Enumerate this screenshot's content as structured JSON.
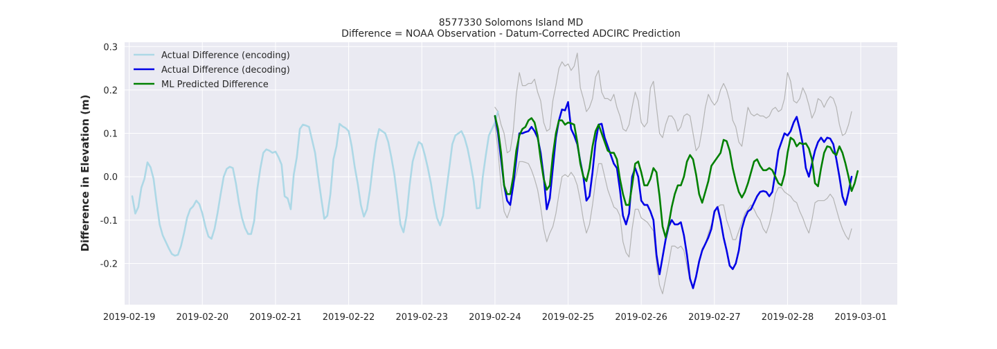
{
  "chart_data": {
    "type": "line",
    "title": "8577330 Solomons Island MD",
    "subtitle": "Difference = NOAA Observation - Datum-Corrected ADCIRC Prediction",
    "xlabel": "",
    "ylabel": "Difference in Elevation (m)",
    "ylim": [
      -0.295,
      0.31
    ],
    "xlim": [
      "2019-02-18T22:30",
      "2019-03-01T12:00"
    ],
    "grid": true,
    "legend_position": "top-left",
    "x_ticks": [
      "2019-02-19",
      "2019-02-20",
      "2019-02-21",
      "2019-02-22",
      "2019-02-23",
      "2019-02-24",
      "2019-02-25",
      "2019-02-26",
      "2019-02-27",
      "2019-02-28",
      "2019-03-01"
    ],
    "y_ticks": [
      -0.2,
      -0.1,
      0.0,
      0.1,
      0.2,
      0.3
    ],
    "series": [
      {
        "name": "Actual Difference (encoding)",
        "color": "#add8e6",
        "start": "2019-02-19T01:00",
        "step_hours": 1,
        "values": [
          -0.045,
          -0.085,
          -0.07,
          -0.025,
          -0.005,
          0.033,
          0.022,
          -0.005,
          -0.06,
          -0.11,
          -0.135,
          -0.15,
          -0.165,
          -0.178,
          -0.182,
          -0.18,
          -0.16,
          -0.13,
          -0.095,
          -0.075,
          -0.068,
          -0.055,
          -0.063,
          -0.085,
          -0.115,
          -0.138,
          -0.143,
          -0.12,
          -0.083,
          -0.04,
          0.0,
          0.018,
          0.023,
          0.02,
          -0.015,
          -0.06,
          -0.095,
          -0.118,
          -0.132,
          -0.132,
          -0.102,
          -0.03,
          0.018,
          0.055,
          0.063,
          0.06,
          0.055,
          0.058,
          0.045,
          0.028,
          -0.045,
          -0.05,
          -0.075,
          0.005,
          0.045,
          0.11,
          0.12,
          0.118,
          0.115,
          0.085,
          0.055,
          0.0,
          -0.05,
          -0.097,
          -0.09,
          -0.04,
          0.04,
          0.07,
          0.122,
          0.116,
          0.112,
          0.105,
          0.07,
          0.022,
          -0.017,
          -0.065,
          -0.092,
          -0.075,
          -0.03,
          0.03,
          0.08,
          0.11,
          0.105,
          0.1,
          0.08,
          0.045,
          0.005,
          -0.05,
          -0.11,
          -0.128,
          -0.09,
          -0.02,
          0.035,
          0.06,
          0.08,
          0.075,
          0.05,
          0.02,
          -0.015,
          -0.06,
          -0.095,
          -0.112,
          -0.09,
          -0.035,
          0.02,
          0.075,
          0.095,
          0.1,
          0.105,
          0.09,
          0.065,
          0.03,
          -0.01,
          -0.073,
          -0.072,
          0.0,
          0.05,
          0.095,
          0.11,
          0.125,
          0.15
        ]
      },
      {
        "name": "Actual Difference (decoding)",
        "color": "#0000e6",
        "start": "2019-02-24T00:00",
        "step_hours": 1,
        "values": [
          0.14,
          0.1,
          0.04,
          -0.02,
          -0.055,
          -0.065,
          -0.02,
          0.04,
          0.1,
          0.1,
          0.103,
          0.105,
          0.115,
          0.105,
          0.09,
          0.055,
          0.0,
          -0.075,
          -0.05,
          0.02,
          0.09,
          0.13,
          0.155,
          0.153,
          0.172,
          0.11,
          0.095,
          0.075,
          0.035,
          0.0,
          -0.055,
          -0.045,
          0.01,
          0.08,
          0.12,
          0.122,
          0.09,
          0.07,
          0.05,
          0.03,
          0.02,
          -0.03,
          -0.09,
          -0.11,
          -0.085,
          0.0,
          0.02,
          0.0,
          -0.055,
          -0.065,
          -0.065,
          -0.08,
          -0.1,
          -0.18,
          -0.225,
          -0.185,
          -0.145,
          -0.115,
          -0.1,
          -0.11,
          -0.11,
          -0.105,
          -0.135,
          -0.18,
          -0.235,
          -0.257,
          -0.23,
          -0.195,
          -0.17,
          -0.155,
          -0.14,
          -0.12,
          -0.08,
          -0.07,
          -0.1,
          -0.14,
          -0.17,
          -0.205,
          -0.213,
          -0.2,
          -0.17,
          -0.12,
          -0.095,
          -0.08,
          -0.075,
          -0.06,
          -0.045,
          -0.035,
          -0.033,
          -0.035,
          -0.045,
          -0.035,
          0.01,
          0.06,
          0.08,
          0.1,
          0.095,
          0.105,
          0.125,
          0.138,
          0.11,
          0.075,
          0.02,
          0.0,
          0.03,
          0.06,
          0.08,
          0.09,
          0.08,
          0.09,
          0.088,
          0.075,
          0.04,
          0.0,
          -0.045,
          -0.065,
          -0.035,
          0.0
        ]
      },
      {
        "name": "ML Predicted Difference",
        "color": "#008000",
        "start": "2019-02-24T00:00",
        "step_hours": 1,
        "values": [
          0.14,
          0.11,
          0.055,
          -0.02,
          -0.04,
          -0.04,
          0.0,
          0.06,
          0.095,
          0.11,
          0.115,
          0.13,
          0.135,
          0.125,
          0.095,
          0.04,
          -0.005,
          -0.03,
          -0.02,
          0.05,
          0.1,
          0.13,
          0.13,
          0.12,
          0.125,
          0.123,
          0.12,
          0.08,
          0.03,
          0.0,
          -0.01,
          0.02,
          0.07,
          0.105,
          0.12,
          0.1,
          0.08,
          0.06,
          0.055,
          0.055,
          0.04,
          -0.005,
          -0.04,
          -0.065,
          -0.065,
          -0.02,
          0.03,
          0.035,
          0.01,
          -0.02,
          -0.02,
          -0.005,
          0.02,
          0.01,
          -0.045,
          -0.115,
          -0.14,
          -0.11,
          -0.07,
          -0.04,
          -0.02,
          -0.02,
          0.0,
          0.035,
          0.05,
          0.04,
          0.005,
          -0.04,
          -0.06,
          -0.035,
          -0.01,
          0.025,
          0.035,
          0.045,
          0.055,
          0.085,
          0.082,
          0.06,
          0.02,
          -0.01,
          -0.035,
          -0.048,
          -0.035,
          -0.015,
          0.01,
          0.035,
          0.04,
          0.025,
          0.015,
          0.015,
          0.02,
          0.015,
          0.0,
          -0.015,
          -0.02,
          0.005,
          0.055,
          0.09,
          0.085,
          0.07,
          0.078,
          0.075,
          0.077,
          0.065,
          0.04,
          -0.015,
          -0.022,
          0.02,
          0.055,
          0.07,
          0.068,
          0.055,
          0.05,
          0.07,
          0.055,
          0.03,
          0.0,
          -0.033,
          -0.015,
          0.013
        ]
      },
      {
        "name": "",
        "color": "#b3b3b3",
        "start": "2019-02-24T00:00",
        "step_hours": 1,
        "values": [
          0.16,
          0.15,
          0.12,
          0.1,
          0.055,
          0.06,
          0.105,
          0.19,
          0.24,
          0.21,
          0.21,
          0.215,
          0.215,
          0.225,
          0.195,
          0.175,
          0.125,
          0.105,
          0.11,
          0.175,
          0.21,
          0.25,
          0.265,
          0.255,
          0.26,
          0.245,
          0.255,
          0.285,
          0.205,
          0.18,
          0.15,
          0.16,
          0.18,
          0.23,
          0.245,
          0.195,
          0.18,
          0.18,
          0.175,
          0.19,
          0.16,
          0.14,
          0.11,
          0.105,
          0.12,
          0.16,
          0.195,
          0.175,
          0.125,
          0.115,
          0.125,
          0.205,
          0.22,
          0.16,
          0.1,
          0.09,
          0.12,
          0.14,
          0.14,
          0.13,
          0.105,
          0.115,
          0.14,
          0.145,
          0.14,
          0.1,
          0.06,
          0.07,
          0.11,
          0.16,
          0.19,
          0.175,
          0.165,
          0.175,
          0.2,
          0.215,
          0.2,
          0.175,
          0.13,
          0.115,
          0.08,
          0.07,
          0.115,
          0.16,
          0.145,
          0.14,
          0.145,
          0.14,
          0.14,
          0.135,
          0.14,
          0.155,
          0.16,
          0.15,
          0.155,
          0.18,
          0.24,
          0.22,
          0.175,
          0.17,
          0.18,
          0.205,
          0.19,
          0.165,
          0.135,
          0.15,
          0.18,
          0.175,
          0.16,
          0.175,
          0.185,
          0.18,
          0.16,
          0.12,
          0.095,
          0.1,
          0.12,
          0.15
        ]
      },
      {
        "name": "",
        "color": "#b3b3b3",
        "start": "2019-02-24T00:00",
        "step_hours": 1,
        "values": [
          0.12,
          0.06,
          -0.02,
          -0.08,
          -0.095,
          -0.075,
          -0.02,
          0.005,
          0.035,
          0.035,
          0.033,
          0.03,
          0.015,
          -0.005,
          -0.03,
          -0.07,
          -0.12,
          -0.15,
          -0.13,
          -0.115,
          -0.085,
          -0.04,
          0.0,
          0.005,
          0.0,
          0.01,
          0.0,
          -0.02,
          -0.055,
          -0.1,
          -0.13,
          -0.11,
          -0.065,
          -0.01,
          0.03,
          0.03,
          0.0,
          -0.03,
          -0.05,
          -0.07,
          -0.075,
          -0.09,
          -0.15,
          -0.175,
          -0.185,
          -0.12,
          -0.075,
          -0.075,
          -0.095,
          -0.1,
          -0.105,
          -0.115,
          -0.125,
          -0.2,
          -0.25,
          -0.27,
          -0.235,
          -0.2,
          -0.16,
          -0.16,
          -0.165,
          -0.16,
          -0.17,
          -0.205,
          -0.24,
          -0.255,
          -0.235,
          -0.2,
          -0.165,
          -0.155,
          -0.13,
          -0.11,
          -0.085,
          -0.07,
          -0.065,
          -0.065,
          -0.1,
          -0.12,
          -0.145,
          -0.145,
          -0.125,
          -0.105,
          -0.085,
          -0.075,
          -0.065,
          -0.075,
          -0.09,
          -0.1,
          -0.12,
          -0.13,
          -0.11,
          -0.08,
          -0.04,
          -0.025,
          -0.025,
          -0.035,
          -0.04,
          -0.045,
          -0.055,
          -0.06,
          -0.08,
          -0.095,
          -0.115,
          -0.13,
          -0.1,
          -0.06,
          -0.055,
          -0.055,
          -0.055,
          -0.05,
          -0.04,
          -0.05,
          -0.075,
          -0.1,
          -0.12,
          -0.135,
          -0.145,
          -0.12
        ]
      }
    ]
  }
}
